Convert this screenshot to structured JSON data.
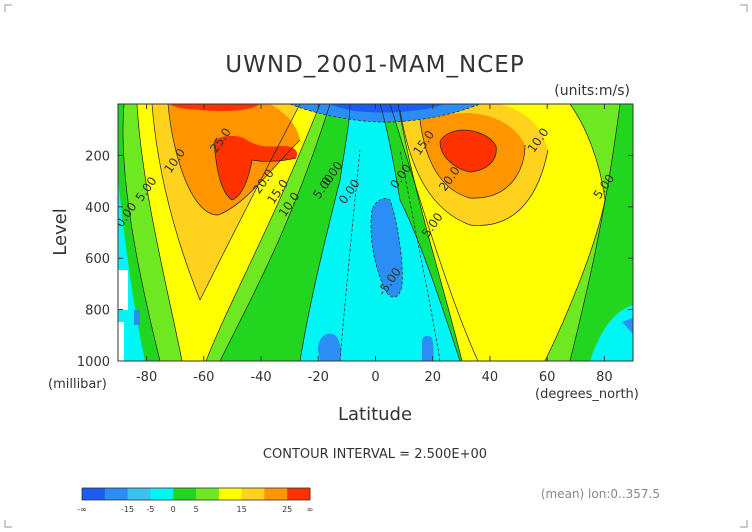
{
  "chart_data": {
    "type": "heatmap",
    "title": "UWND_2001-MAM_NCEP",
    "units_label": "(units:m/s)",
    "xlabel": "Latitude",
    "ylabel": "Level",
    "x_unit_label": "(degrees_north)",
    "y_unit_label": "(millibar)",
    "xlim": [
      -90,
      90
    ],
    "ylim": [
      1000,
      0
    ],
    "x_ticks": [
      -80,
      -60,
      -40,
      -20,
      0,
      20,
      40,
      60,
      80
    ],
    "y_ticks": [
      200,
      400,
      600,
      800,
      1000
    ],
    "contour_interval_text": "CONTOUR INTERVAL = 2.500E+00",
    "footer_note": "(mean) lon:0..357.5",
    "colorbar": {
      "colors": [
        "#1c5cf0",
        "#2a8ef5",
        "#3cc0f0",
        "#00f5f5",
        "#22d620",
        "#6ee820",
        "#ffff00",
        "#ffd21e",
        "#ff9600",
        "#ff3200"
      ],
      "tick_labels": [
        "-∞",
        "-15",
        "-5",
        "0",
        "5",
        "15",
        "25",
        "∞"
      ]
    },
    "contour_labels": [
      {
        "text": "25.0",
        "lat": -53,
        "lev": 150
      },
      {
        "text": "20.0",
        "lat": -38,
        "lev": 310
      },
      {
        "text": "15.0",
        "lat": -33,
        "lev": 350
      },
      {
        "text": "10.0",
        "lat": -29,
        "lev": 400
      },
      {
        "text": "5.00",
        "lat": -17,
        "lev": 330
      },
      {
        "text": "0.00",
        "lat": -14,
        "lev": 280
      },
      {
        "text": "10.0",
        "lat": -69,
        "lev": 230
      },
      {
        "text": "5.00",
        "lat": -79,
        "lev": 340
      },
      {
        "text": "0.00",
        "lat": -86,
        "lev": 440
      },
      {
        "text": "0.00",
        "lat": -8,
        "lev": 350
      },
      {
        "text": "0.00",
        "lat": 10,
        "lev": 290
      },
      {
        "text": "-5.00",
        "lat": 6,
        "lev": 700
      },
      {
        "text": "15.0",
        "lat": 18,
        "lev": 160
      },
      {
        "text": "20.0",
        "lat": 27,
        "lev": 300
      },
      {
        "text": "5.00",
        "lat": 21,
        "lev": 480
      },
      {
        "text": "10.0",
        "lat": 58,
        "lev": 150
      },
      {
        "text": "5.00",
        "lat": 81,
        "lev": 330
      }
    ]
  }
}
